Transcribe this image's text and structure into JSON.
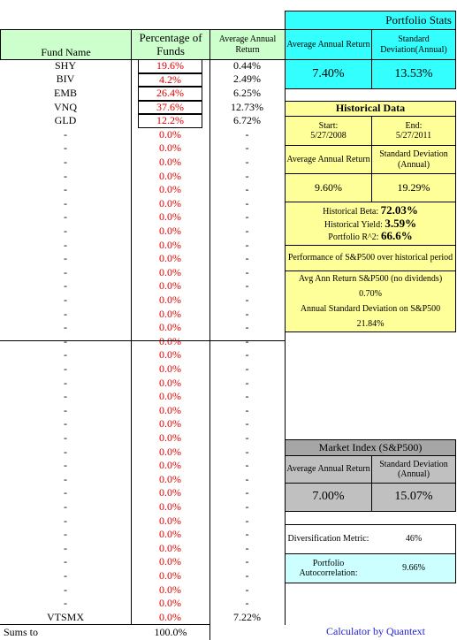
{
  "fund_table": {
    "headers": [
      "Fund Name",
      "Percentage of Funds",
      "Average Annual Return"
    ],
    "rows": [
      [
        "SHY",
        "19.6%",
        "0.44%"
      ],
      [
        "BIV",
        "4.2%",
        "2.49%"
      ],
      [
        "EMB",
        "26.4%",
        "6.25%"
      ],
      [
        "VNQ",
        "37.6%",
        "12.73%"
      ],
      [
        "GLD",
        "12.2%",
        "6.72%"
      ],
      [
        "-",
        "0.0%",
        "-"
      ],
      [
        "-",
        "0.0%",
        "-"
      ],
      [
        "-",
        "0.0%",
        "-"
      ],
      [
        "-",
        "0.0%",
        "-"
      ],
      [
        "-",
        "0.0%",
        "-"
      ],
      [
        "-",
        "0.0%",
        "-"
      ],
      [
        "-",
        "0.0%",
        "-"
      ],
      [
        "-",
        "0.0%",
        "-"
      ],
      [
        "-",
        "0.0%",
        "-"
      ],
      [
        "-",
        "0.0%",
        "-"
      ],
      [
        "-",
        "0.0%",
        "-"
      ],
      [
        "-",
        "0.0%",
        "-"
      ],
      [
        "-",
        "0.0%",
        "-"
      ],
      [
        "-",
        "0.0%",
        "-"
      ],
      [
        "-",
        "0.0%",
        "-"
      ],
      [
        "-",
        "0.0%",
        "-"
      ],
      [
        "-",
        "0.0%",
        "-"
      ],
      [
        "-",
        "0.0%",
        "-"
      ],
      [
        "-",
        "0.0%",
        "-"
      ],
      [
        "-",
        "0.0%",
        "-"
      ],
      [
        "-",
        "0.0%",
        "-"
      ],
      [
        "-",
        "0.0%",
        "-"
      ],
      [
        "-",
        "0.0%",
        "-"
      ],
      [
        "-",
        "0.0%",
        "-"
      ],
      [
        "-",
        "0.0%",
        "-"
      ],
      [
        "-",
        "0.0%",
        "-"
      ],
      [
        "-",
        "0.0%",
        "-"
      ],
      [
        "-",
        "0.0%",
        "-"
      ],
      [
        "-",
        "0.0%",
        "-"
      ],
      [
        "-",
        "0.0%",
        "-"
      ],
      [
        "-",
        "0.0%",
        "-"
      ],
      [
        "-",
        "0.0%",
        "-"
      ],
      [
        "-",
        "0.0%",
        "-"
      ],
      [
        "-",
        "0.0%",
        "-"
      ],
      [
        "-",
        "0.0%",
        "-"
      ],
      [
        "VTSMX",
        "0.0%",
        "7.22%"
      ]
    ],
    "sum_label": "Sums to",
    "sum_value": "100.0%"
  },
  "portfolio_stats": {
    "title": "Portfolio Stats",
    "headers": [
      "Average Annual Return",
      "Standard Deviation(Annual)"
    ],
    "values": [
      "7.40%",
      "13.53%"
    ]
  },
  "historical": {
    "title": "Historical Data",
    "start_label": "Start:",
    "start": "5/27/2008",
    "end_label": "End:",
    "end": "5/27/2011",
    "headers": [
      "Average Annual Return",
      "Standard Deviation (Annual)"
    ],
    "values": [
      "9.60%",
      "19.29%"
    ],
    "metrics": [
      {
        "label": "Historical Beta:",
        "value": "72.03%"
      },
      {
        "label": "Historical Yield:",
        "value": "3.59%"
      },
      {
        "label": "Portfolio R^2:",
        "value": "66.6%"
      }
    ],
    "sp_title": "Performance of S&P500 over historical period",
    "sp_return_label": "Avg Ann Return S&P500 (no dividends)",
    "sp_return": "0.70%",
    "sp_sd_label": "Annual Standard Deviation on S&P500",
    "sp_sd": "21.84%"
  },
  "market_index": {
    "title": "Market Index (S&P500)",
    "headers": [
      "Average Annual Return",
      "Standard Deviation (Annual)"
    ],
    "values": [
      "7.00%",
      "15.07%"
    ]
  },
  "diversification": {
    "label": "Diversification Metric:",
    "value": "46%"
  },
  "autocorrelation": {
    "label": "Portfolio Autocorrelation:",
    "value": "9.66%"
  },
  "credit": "Calculator by Quantext"
}
